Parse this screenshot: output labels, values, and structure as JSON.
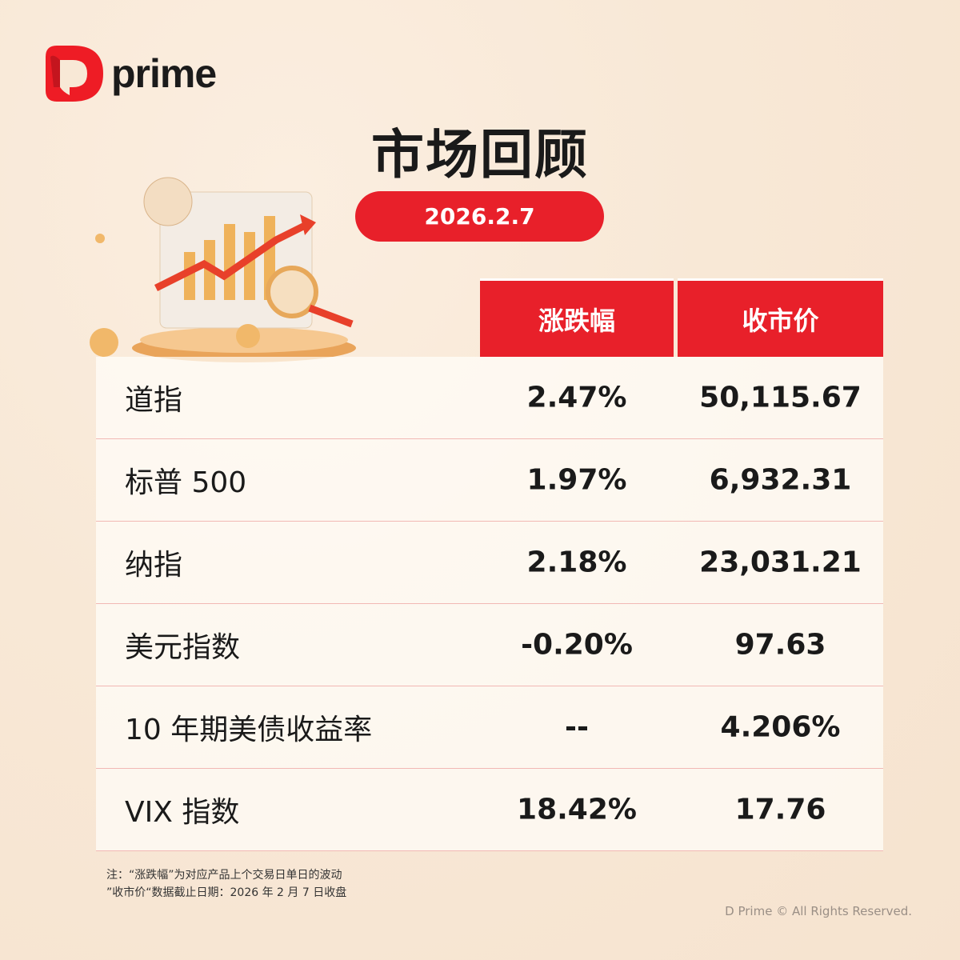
{
  "brand": {
    "name": "prime",
    "accent": "#e8202a"
  },
  "title": "市场回顾",
  "date": "2026.2.7",
  "table": {
    "headers": [
      "涨跌幅",
      "收市价"
    ],
    "rows": [
      {
        "name": "道指",
        "change": "2.47%",
        "close": "50,115.67"
      },
      {
        "name": "标普 500",
        "change": "1.97%",
        "close": "6,932.31"
      },
      {
        "name": "纳指",
        "change": "2.18%",
        "close": "23,031.21"
      },
      {
        "name": "美元指数",
        "change": "-0.20%",
        "close": "97.63"
      },
      {
        "name": "10 年期美债收益率",
        "change": "--",
        "close": "4.206%"
      },
      {
        "name": "VIX 指数",
        "change": "18.42%",
        "close": "17.76"
      }
    ]
  },
  "notes": [
    "注：“涨跌幅”为对应产品上个交易日单日的波动",
    "”收市价“数据截止日期：2026 年 2 月 7 日收盘"
  ],
  "copyright": "D Prime © All Rights Reserved."
}
